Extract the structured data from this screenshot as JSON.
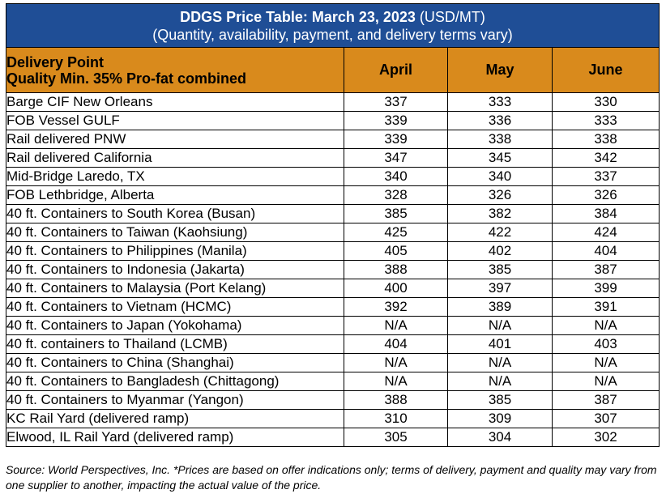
{
  "title": {
    "main": "DDGS Price Table: March 23, 2023",
    "unit": " (USD/MT)",
    "subtitle": "(Quantity, availability, payment, and delivery terms vary)"
  },
  "header": {
    "delivery_point": "Delivery Point",
    "quality": "Quality Min. 35% Pro-fat combined",
    "months": [
      "April",
      "May",
      "June"
    ]
  },
  "rows": [
    {
      "location": "Barge CIF New Orleans",
      "april": "337",
      "may": "333",
      "june": "330"
    },
    {
      "location": "FOB Vessel GULF",
      "april": "339",
      "may": "336",
      "june": "333"
    },
    {
      "location": "Rail delivered PNW",
      "april": "339",
      "may": "338",
      "june": "338"
    },
    {
      "location": "Rail delivered California",
      "april": "347",
      "may": "345",
      "june": "342"
    },
    {
      "location": "Mid-Bridge Laredo, TX",
      "april": "340",
      "may": "340",
      "june": "337"
    },
    {
      "location": "FOB Lethbridge, Alberta",
      "april": "328",
      "may": "326",
      "june": "326"
    },
    {
      "location": "40 ft. Containers to South Korea (Busan)",
      "april": "385",
      "may": "382",
      "june": "384"
    },
    {
      "location": "40 ft. Containers to Taiwan (Kaohsiung)",
      "april": "425",
      "may": "422",
      "june": "424"
    },
    {
      "location": "40 ft. Containers to Philippines (Manila)",
      "april": "405",
      "may": "402",
      "june": "404"
    },
    {
      "location": "40 ft. Containers to Indonesia (Jakarta)",
      "april": "388",
      "may": "385",
      "june": "387"
    },
    {
      "location": "40 ft. Containers to Malaysia (Port Kelang)",
      "april": "400",
      "may": "397",
      "june": "399"
    },
    {
      "location": "40 ft. Containers to Vietnam (HCMC)",
      "april": "392",
      "may": "389",
      "june": "391"
    },
    {
      "location": "40 ft. Containers to Japan (Yokohama)",
      "april": "N/A",
      "may": "N/A",
      "june": "N/A"
    },
    {
      "location": "40 ft. containers to Thailand (LCMB)",
      "april": "404",
      "may": "401",
      "june": "403"
    },
    {
      "location": "40 ft. Containers to China (Shanghai)",
      "april": "N/A",
      "may": "N/A",
      "june": "N/A"
    },
    {
      "location": "40 ft. Containers to Bangladesh (Chittagong)",
      "april": "N/A",
      "may": "N/A",
      "june": "N/A"
    },
    {
      "location": "40 ft. Containers to Myanmar (Yangon)",
      "april": "388",
      "may": "385",
      "june": "387"
    },
    {
      "location": "KC Rail Yard (delivered ramp)",
      "april": "310",
      "may": "309",
      "june": "307"
    },
    {
      "location": "Elwood, IL Rail Yard (delivered ramp)",
      "april": "305",
      "may": "304",
      "june": "302"
    }
  ],
  "footnote": "Source: World Perspectives, Inc. *Prices are based on offer indications only; terms of delivery, payment and quality may vary from one supplier to another, impacting the actual value of the price.",
  "colors": {
    "title_background": "#1f4e96",
    "title_text": "#ffffff",
    "header_background": "#d98a1c"
  }
}
